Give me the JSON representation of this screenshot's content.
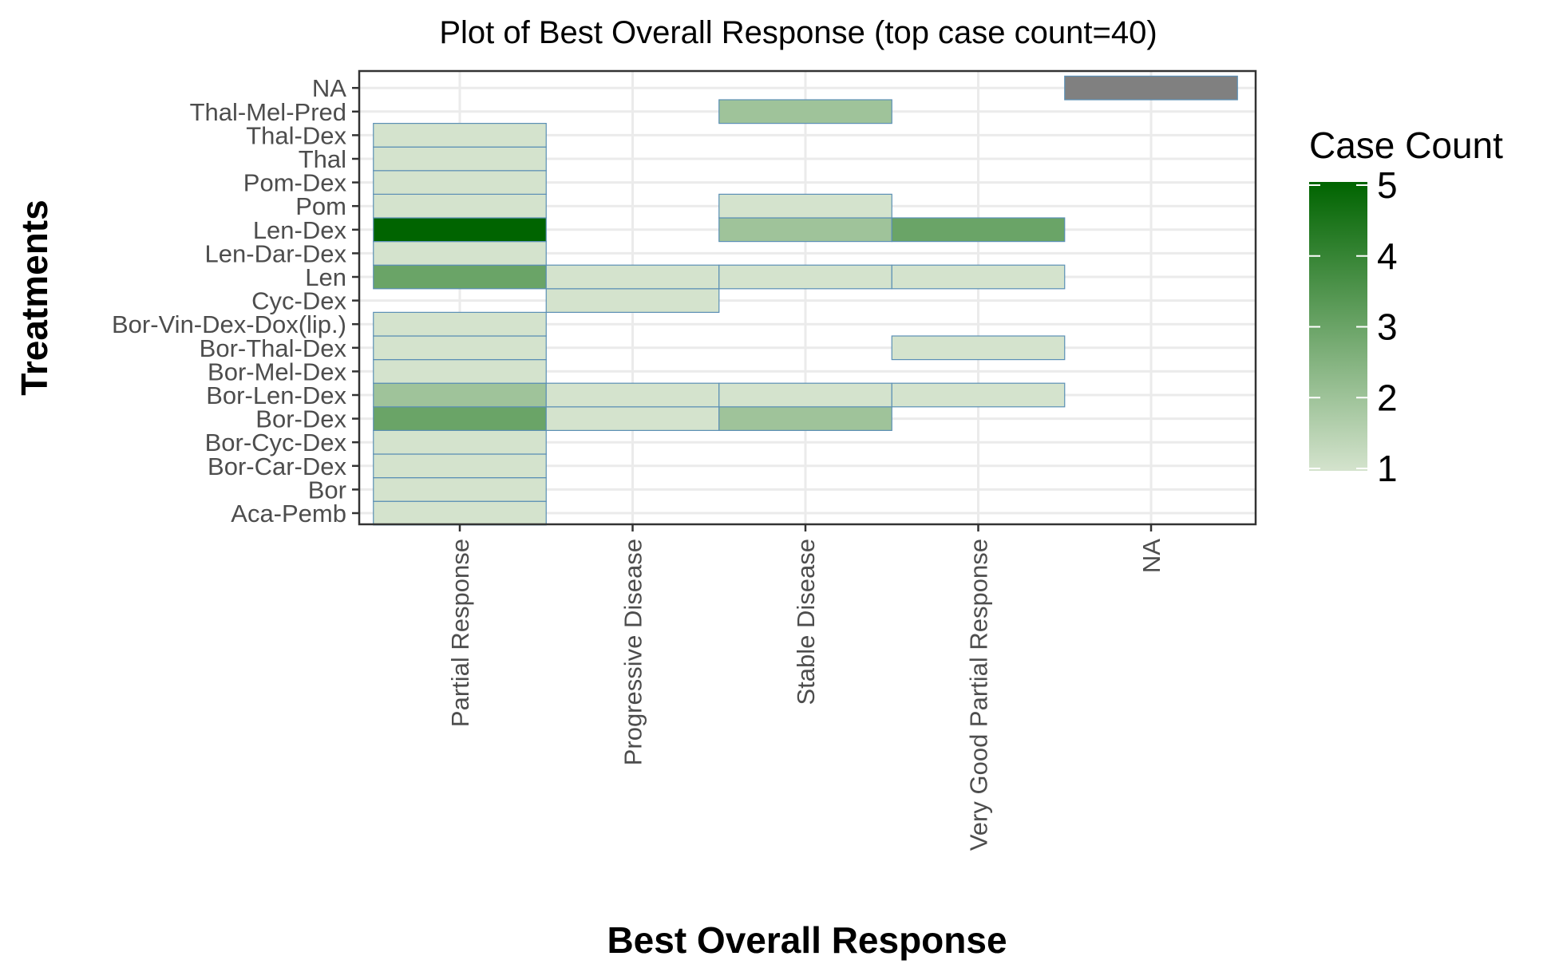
{
  "chart_data": {
    "type": "heatmap",
    "title": "Plot of Best Overall Response (top case count=40)",
    "xlabel": "Best Overall Response",
    "ylabel": "Treatments",
    "x_categories": [
      "Partial Response",
      "Progressive Disease",
      "Stable Disease",
      "Very Good Partial Response",
      "NA"
    ],
    "y_categories": [
      "Aca-Pemb",
      "Bor",
      "Bor-Car-Dex",
      "Bor-Cyc-Dex",
      "Bor-Dex",
      "Bor-Len-Dex",
      "Bor-Mel-Dex",
      "Bor-Thal-Dex",
      "Bor-Vin-Dex-Dox(lip.)",
      "Cyc-Dex",
      "Len",
      "Len-Dar-Dex",
      "Len-Dex",
      "Pom",
      "Pom-Dex",
      "Thal",
      "Thal-Dex",
      "Thal-Mel-Pred",
      "NA"
    ],
    "cells": [
      {
        "x": "Partial Response",
        "y": "Aca-Pemb",
        "value": 1
      },
      {
        "x": "Partial Response",
        "y": "Bor",
        "value": 1
      },
      {
        "x": "Partial Response",
        "y": "Bor-Car-Dex",
        "value": 1
      },
      {
        "x": "Partial Response",
        "y": "Bor-Cyc-Dex",
        "value": 1
      },
      {
        "x": "Partial Response",
        "y": "Bor-Dex",
        "value": 3
      },
      {
        "x": "Progressive Disease",
        "y": "Bor-Dex",
        "value": 1
      },
      {
        "x": "Stable Disease",
        "y": "Bor-Dex",
        "value": 2
      },
      {
        "x": "Partial Response",
        "y": "Bor-Len-Dex",
        "value": 2
      },
      {
        "x": "Progressive Disease",
        "y": "Bor-Len-Dex",
        "value": 1
      },
      {
        "x": "Stable Disease",
        "y": "Bor-Len-Dex",
        "value": 1
      },
      {
        "x": "Very Good Partial Response",
        "y": "Bor-Len-Dex",
        "value": 1
      },
      {
        "x": "Partial Response",
        "y": "Bor-Mel-Dex",
        "value": 1
      },
      {
        "x": "Partial Response",
        "y": "Bor-Thal-Dex",
        "value": 1
      },
      {
        "x": "Very Good Partial Response",
        "y": "Bor-Thal-Dex",
        "value": 1
      },
      {
        "x": "Partial Response",
        "y": "Bor-Vin-Dex-Dox(lip.)",
        "value": 1
      },
      {
        "x": "Progressive Disease",
        "y": "Cyc-Dex",
        "value": 1
      },
      {
        "x": "Partial Response",
        "y": "Len",
        "value": 3
      },
      {
        "x": "Progressive Disease",
        "y": "Len",
        "value": 1
      },
      {
        "x": "Stable Disease",
        "y": "Len",
        "value": 1
      },
      {
        "x": "Very Good Partial Response",
        "y": "Len",
        "value": 1
      },
      {
        "x": "Partial Response",
        "y": "Len-Dar-Dex",
        "value": 1
      },
      {
        "x": "Partial Response",
        "y": "Len-Dex",
        "value": 5
      },
      {
        "x": "Stable Disease",
        "y": "Len-Dex",
        "value": 2
      },
      {
        "x": "Very Good Partial Response",
        "y": "Len-Dex",
        "value": 3
      },
      {
        "x": "Partial Response",
        "y": "Pom",
        "value": 1
      },
      {
        "x": "Stable Disease",
        "y": "Pom",
        "value": 1
      },
      {
        "x": "Partial Response",
        "y": "Pom-Dex",
        "value": 1
      },
      {
        "x": "Partial Response",
        "y": "Thal",
        "value": 1
      },
      {
        "x": "Partial Response",
        "y": "Thal-Dex",
        "value": 1
      },
      {
        "x": "Stable Disease",
        "y": "Thal-Mel-Pred",
        "value": 2
      },
      {
        "x": "NA",
        "y": "NA",
        "value": null
      }
    ],
    "legend": {
      "title": "Case Count",
      "ticks": [
        1,
        2,
        3,
        4,
        5
      ],
      "min": 1,
      "max": 5,
      "color_low": "#d4e3cd",
      "color_high": "#006400",
      "na_color": "#808080",
      "placement": "right"
    },
    "grid": true,
    "cell_border_color": "#5b8fb5"
  }
}
